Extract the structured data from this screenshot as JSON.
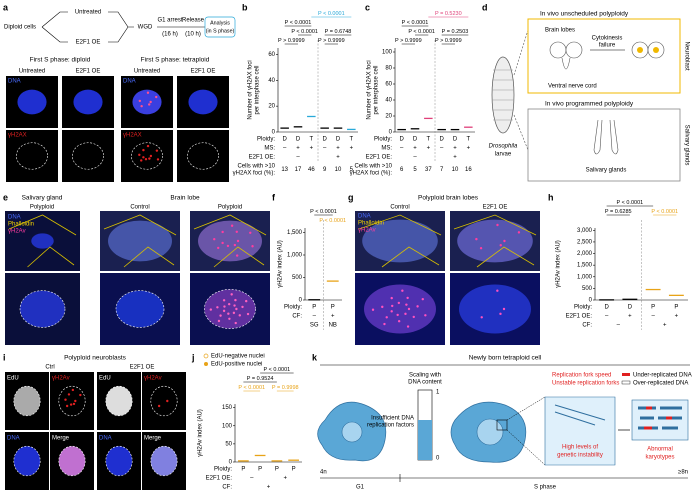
{
  "a": {
    "label": "a",
    "untreated": "Untreated",
    "diploid": "Diploid cells",
    "e2f1": "E2F1 OE",
    "wgd": "WGD",
    "g1": [
      "G1 arrest",
      "(16 h)"
    ],
    "release": [
      "Release",
      "(10 h)"
    ],
    "analysis": [
      "Analysis",
      "(in S phase)"
    ],
    "diploid_title": "First S phase: diploid",
    "tetraploid_title": "First S phase: tetraploid",
    "cols": [
      "Untreated",
      "E2F1 OE",
      "Untreated",
      "E2F1 OE"
    ],
    "dna": [
      "DNA",
      "DNA"
    ],
    "h2ax": [
      "γH2AX",
      "γH2AX"
    ]
  },
  "b": {
    "label": "b",
    "ylabel": [
      "Number of γH2AX foci",
      "per interphase cell"
    ],
    "yticks": [
      0,
      20,
      40,
      60
    ],
    "ylim": [
      0,
      65
    ],
    "means": [
      3,
      4,
      12,
      3,
      3,
      2
    ],
    "colors": [
      "#000000",
      "#000000",
      "#29a9d9",
      "#000000",
      "#000000",
      "#29a9d9"
    ],
    "rows": [
      {
        "label": "Ploidy:",
        "values": [
          "D",
          "D",
          "T",
          "D",
          "D",
          "T"
        ]
      },
      {
        "label": "MS:",
        "values": [
          "–",
          "+",
          "+",
          "–",
          "+",
          "+"
        ]
      },
      {
        "label": "E2F1 OE:",
        "values": [
          "–",
          "+"
        ]
      },
      {
        "label": [
          "Cells with >10",
          "γH2AX foci (%):"
        ],
        "values": [
          13,
          17,
          46,
          9,
          10,
          5
        ]
      }
    ],
    "pvalues": [
      {
        "text": "P < 0.0001",
        "color": "#29a9d9"
      },
      {
        "text": "P < 0.0001",
        "color": "#000000"
      },
      {
        "text": "P < 0.0001",
        "color": "#000000"
      },
      {
        "text": "P = 0.6748",
        "color": "#000000"
      },
      {
        "text": "P > 0.9999",
        "color": "#000000"
      },
      {
        "text": "P > 0.9999",
        "color": "#000000"
      }
    ]
  },
  "c": {
    "label": "c",
    "ylabel": [
      "Number of γH2AX foci",
      "per interphase cell"
    ],
    "yticks": [
      0,
      20,
      40,
      60,
      80,
      100
    ],
    "ylim": [
      0,
      105
    ],
    "means": [
      3,
      4,
      17,
      3,
      3,
      6
    ],
    "colors": [
      "#000000",
      "#000000",
      "#e0407a",
      "#000000",
      "#000000",
      "#e0407a"
    ],
    "rows": [
      {
        "label": "Ploidy:",
        "values": [
          "D",
          "D",
          "T",
          "D",
          "D",
          "T"
        ]
      },
      {
        "label": "MS:",
        "values": [
          "–",
          "+",
          "+",
          "–",
          "+",
          "+"
        ]
      },
      {
        "label": "E2F1 OE:",
        "values": [
          "–",
          "+"
        ]
      },
      {
        "label": [
          "Cells with >10",
          "γH2AX foci (%):"
        ],
        "values": [
          6,
          5,
          37,
          7,
          10,
          16
        ]
      }
    ],
    "pvalues": [
      {
        "text": "P = 0.5230",
        "color": "#e0407a"
      },
      {
        "text": "P < 0.0001",
        "color": "#000000"
      },
      {
        "text": "P < 0.0001",
        "color": "#000000"
      },
      {
        "text": "P = 0.2503",
        "color": "#000000"
      },
      {
        "text": "P > 0.9999",
        "color": "#000000"
      },
      {
        "text": "P > 0.9999",
        "color": "#000000"
      }
    ]
  },
  "d": {
    "label": "d",
    "unscheduled": "In vivo unscheduled polyploidy",
    "brain": "Brain lobes",
    "cytokinesis": [
      "Cytokinesis",
      "failure"
    ],
    "vnc": "Ventral nerve cord",
    "neuroblast": "Neuroblast",
    "programmed": "In vivo programmed polyploidy",
    "sg_side": "Salivary glands",
    "sg": "Salivary glands",
    "larvae": [
      "Drosophila",
      "larvae"
    ]
  },
  "e": {
    "label": "e",
    "sg": "Salivary gland",
    "sg_poly": "Polyploid",
    "brain": "Brain lobe",
    "control": "Control",
    "poly": "Polyploid",
    "channels": [
      "DNA",
      "Phalloidin",
      "γH2Av"
    ]
  },
  "f": {
    "label": "f",
    "ylabel": [
      "γH2Av index (AU)"
    ],
    "yticks": [
      0,
      500,
      {
        "value": 1000,
        "label": "1,000"
      },
      {
        "value": 1500,
        "label": "1,500"
      }
    ],
    "ylim": [
      0,
      1600
    ],
    "means": [
      5,
      420
    ],
    "colors": [
      "#000000",
      "#e8a317"
    ],
    "rows": [
      {
        "label": "Ploidy:",
        "values": [
          "P",
          "P"
        ]
      },
      {
        "label": "CF:",
        "values": [
          "–",
          "+"
        ]
      },
      {
        "values": [
          "SG",
          "NB"
        ]
      }
    ],
    "pvalues": [
      {
        "text": "P < 0.0001",
        "color": "#000000"
      },
      {
        "text": "P < 0.0001",
        "color": "#e8a317"
      }
    ]
  },
  "g": {
    "label": "g",
    "title": "Polyploid brain lobes",
    "control": "Control",
    "e2f1": "E2F1 OE",
    "channels": [
      "DNA",
      "Phalloidin",
      "γH2Av"
    ]
  },
  "h": {
    "label": "h",
    "ylabel": [
      "γH2Av index (AU)"
    ],
    "yticks": [
      0,
      500,
      {
        "value": 1000,
        "label": "1,000"
      },
      {
        "value": 1500,
        "label": "1,500"
      },
      {
        "value": 2000,
        "label": "2,000"
      },
      {
        "value": 2500,
        "label": "2,500"
      },
      {
        "value": 3000,
        "label": "3,000"
      }
    ],
    "ylim": [
      0,
      3100
    ],
    "means": [
      5,
      30,
      450,
      200
    ],
    "colors": [
      "#000000",
      "#000000",
      "#e8a317",
      "#e8a317"
    ],
    "rows": [
      {
        "label": "Ploidy:",
        "values": [
          "D",
          "D",
          "P",
          "P"
        ]
      },
      {
        "label": "E2F1 OE:",
        "values": [
          "–",
          "+",
          "–",
          "+"
        ]
      },
      {
        "label": "CF:",
        "values": [
          "–",
          "+"
        ]
      }
    ],
    "pvalues": [
      {
        "text": "P < 0.0001",
        "color": "#000000"
      },
      {
        "text": "P = 0.6285",
        "color": "#000000"
      },
      {
        "text": "P < 0.0001",
        "color": "#e8a317"
      }
    ]
  },
  "i": {
    "label": "i",
    "title": "Polyploid neuroblasts",
    "ctrl": "Ctrl",
    "e2f1": "E2F1 OE",
    "edu": [
      "EdU",
      "EdU"
    ],
    "h2av": [
      "γH2Av",
      "γH2Av"
    ],
    "dna": [
      "DNA",
      "DNA"
    ],
    "merge": [
      "Merge",
      "Merge"
    ]
  },
  "j": {
    "label": "j",
    "legend": [
      {
        "name": "EdU-negative nuclei"
      },
      {
        "name": "EdU-positive nuclei"
      }
    ],
    "ylabel": [
      "γH2Av index (AU)"
    ],
    "yticks": [
      0,
      50,
      100,
      150
    ],
    "ylim": [
      0,
      160
    ],
    "means": [
      3,
      18,
      3,
      5
    ],
    "colors": [
      "#e8a317",
      "#e8a317",
      "#e8a317",
      "#e8a317"
    ],
    "rows": [
      {
        "label": "Ploidy:",
        "values": [
          "P",
          "P",
          "P",
          "P"
        ]
      },
      {
        "label": "E2F1 OE:",
        "values": [
          "–",
          "+"
        ]
      },
      {
        "label": "CF:",
        "values": [
          "+"
        ]
      }
    ],
    "pvalues": [
      {
        "text": "P < 0.0001",
        "color": "#000000"
      },
      {
        "text": "P = 0.9524",
        "color": "#000000"
      },
      {
        "text": "P < 0.0001",
        "color": "#e8a317"
      },
      {
        "text": "P = 0.9998",
        "color": "#e8a317"
      }
    ]
  },
  "k": {
    "label": "k",
    "title": "Newly born tetraploid cell",
    "scaling": [
      "Scaling with",
      "DNA content"
    ],
    "insufficient": [
      "Insufficient DNA",
      "replication factors"
    ],
    "one": "1",
    "zero": "0",
    "fork_speed": "Replication fork speed",
    "unstable": "Unstable replication forks",
    "under": "Under-replicated DNA",
    "over": "Over-replicated DNA",
    "instability": [
      "High levels of",
      "genetic instability"
    ],
    "abnormal": [
      "Abnormal",
      "karyotypes"
    ],
    "n4": "4n",
    "n8": "≥8n",
    "g1": "G1",
    "s": "S phase"
  }
}
